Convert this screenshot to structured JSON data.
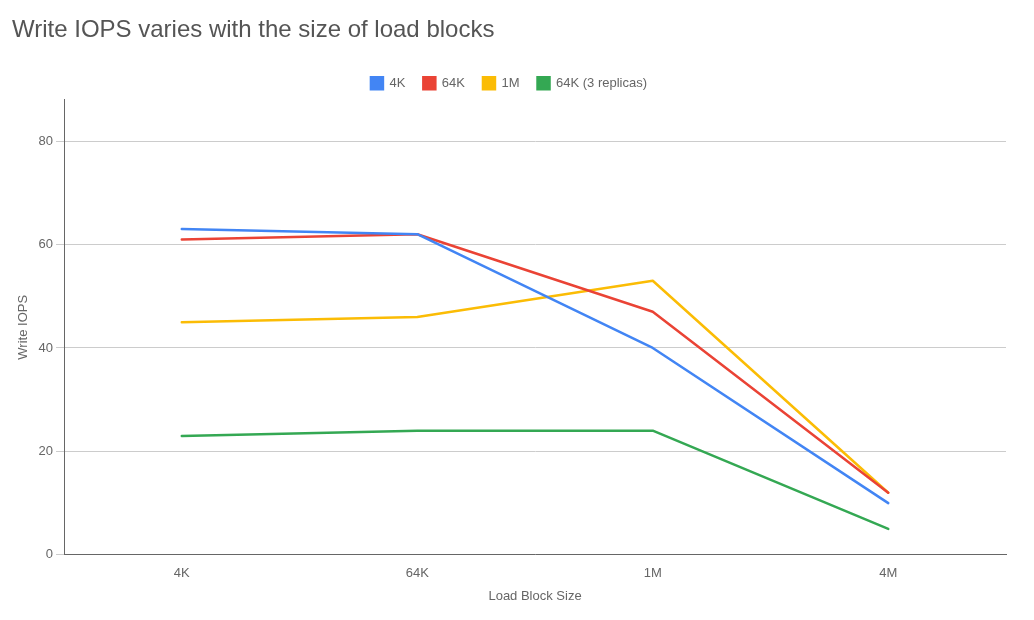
{
  "chart_data": {
    "type": "line",
    "title": "Write IOPS varies with the size of load blocks",
    "x_label": "Load Block Size",
    "y_label": "Write IOPS",
    "categories": [
      "4K",
      "64K",
      "1M",
      "4M"
    ],
    "series": [
      {
        "name": "4K",
        "color": "#4285F4",
        "values": [
          63,
          62,
          40,
          10
        ]
      },
      {
        "name": "64K",
        "color": "#EA4335",
        "values": [
          61,
          62,
          47,
          12
        ]
      },
      {
        "name": "1M",
        "color": "#FBBC05",
        "values": [
          45,
          46,
          53,
          12
        ]
      },
      {
        "name": "64K (3 replicas)",
        "color": "#34A853",
        "values": [
          23,
          24,
          24,
          5
        ]
      }
    ],
    "ylim": [
      0,
      88
    ],
    "yticks": [
      0,
      20,
      40,
      60,
      80
    ],
    "grid": true,
    "legend": "top"
  }
}
